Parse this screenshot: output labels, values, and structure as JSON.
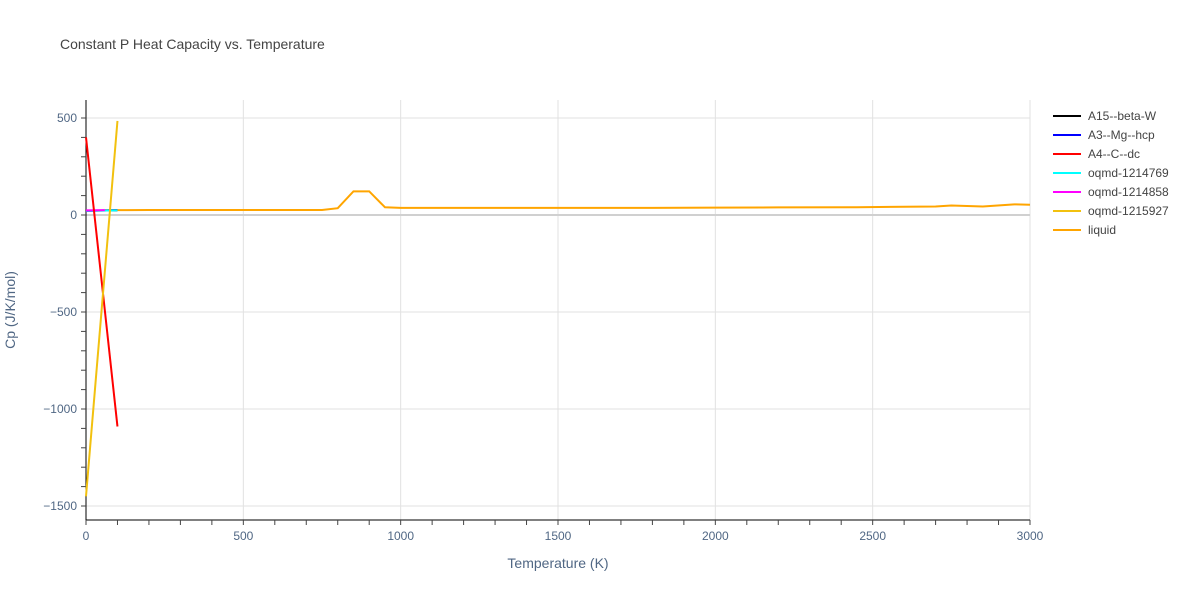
{
  "chart_data": {
    "type": "line",
    "title": "Constant P Heat Capacity vs. Temperature",
    "xlabel": "Temperature (K)",
    "ylabel": "Cp (J/K/mol)",
    "xlim": [
      0,
      3000
    ],
    "ylim": [
      -1550,
      600
    ],
    "xticks": [
      0,
      500,
      1000,
      1500,
      2000,
      2500,
      3000
    ],
    "yticks": [
      -1500,
      -1000,
      -500,
      0,
      500
    ],
    "grid": true,
    "legend_position": "right",
    "series": [
      {
        "name": "A15--beta-W",
        "color": "#000000",
        "x": [
          0,
          100
        ],
        "y": [
          22,
          24
        ]
      },
      {
        "name": "A3--Mg--hcp",
        "color": "#0000ff",
        "x": [
          0,
          100
        ],
        "y": [
          22,
          25
        ]
      },
      {
        "name": "A4--C--dc",
        "color": "#ff0000",
        "x": [
          0,
          100
        ],
        "y": [
          400,
          -1090
        ]
      },
      {
        "name": "oqmd-1214769",
        "color": "#00ffff",
        "x": [
          0,
          100
        ],
        "y": [
          22,
          24
        ]
      },
      {
        "name": "oqmd-1214858",
        "color": "#ff00ff",
        "x": [
          0,
          60
        ],
        "y": [
          24,
          25
        ]
      },
      {
        "name": "oqmd-1215927",
        "color": "#f2c10f",
        "x": [
          0,
          100
        ],
        "y": [
          -1450,
          485
        ]
      },
      {
        "name": "liquid",
        "color": "#ffa500",
        "x": [
          60,
          100,
          200,
          400,
          600,
          750,
          800,
          850,
          900,
          950,
          1000,
          1200,
          1500,
          1800,
          2000,
          2200,
          2450,
          2700,
          2750,
          2850,
          2950,
          3000
        ],
        "y": [
          25,
          25,
          26,
          26,
          26,
          26,
          35,
          122,
          122,
          40,
          37,
          37,
          37,
          37,
          38,
          39,
          40,
          44,
          49,
          44,
          55,
          53
        ]
      }
    ]
  },
  "legend": {
    "items": [
      {
        "label": "A15--beta-W",
        "color": "#000000"
      },
      {
        "label": "A3--Mg--hcp",
        "color": "#0000ff"
      },
      {
        "label": "A4--C--dc",
        "color": "#ff0000"
      },
      {
        "label": "oqmd-1214769",
        "color": "#00ffff"
      },
      {
        "label": "oqmd-1214858",
        "color": "#ff00ff"
      },
      {
        "label": "oqmd-1215927",
        "color": "#f2c10f"
      },
      {
        "label": "liquid",
        "color": "#ffa500"
      }
    ]
  }
}
